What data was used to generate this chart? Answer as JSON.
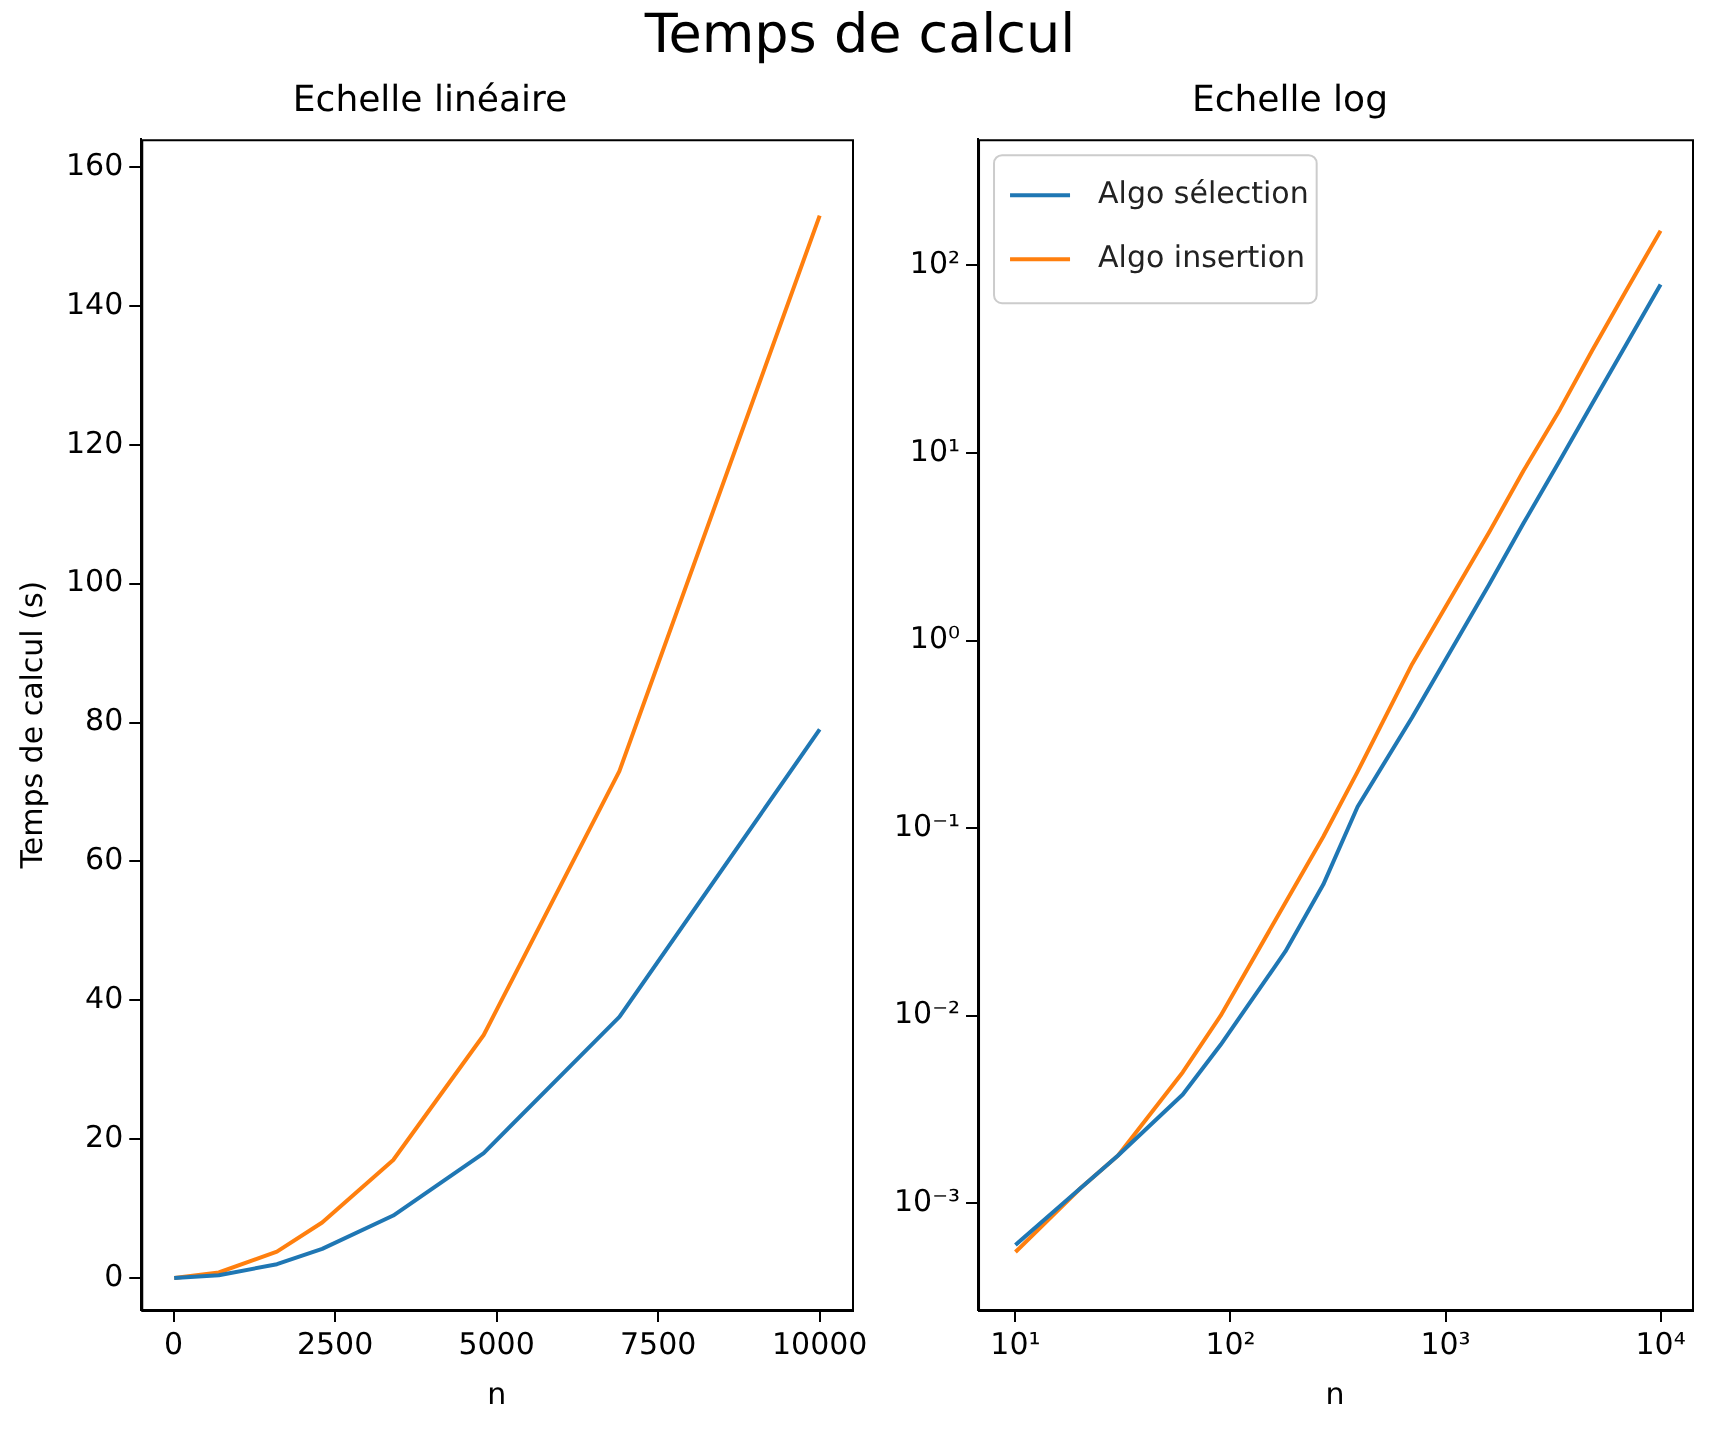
{
  "chart_data": [
    {
      "type": "line",
      "title": "Temps de calcul",
      "subtitle": "Echelle linéaire",
      "xlabel": "n",
      "ylabel": "Temps de calcul (s)",
      "x": [
        10,
        700,
        1600,
        2300,
        3400,
        4800,
        6900,
        10000
      ],
      "series": [
        {
          "color": "#1f77b4",
          "values": [
            0,
            0.4,
            2,
            4.2,
            9,
            18,
            37.6,
            79
          ]
        },
        {
          "color": "#ff7f0e",
          "values": [
            0,
            0.8,
            3.8,
            8,
            17,
            35,
            73,
            153
          ]
        }
      ],
      "xlim": [
        -500,
        10500
      ],
      "xticks": [
        0,
        2500,
        5000,
        7500,
        10000
      ],
      "ylim": [
        -4.6,
        164
      ],
      "yticks": [
        0,
        20,
        40,
        60,
        80,
        100,
        120,
        140,
        160
      ],
      "grid": false,
      "legend": false
    },
    {
      "type": "line",
      "subtitle": "Echelle log",
      "xlabel": "n",
      "x": [
        10,
        20,
        30,
        60,
        90,
        180,
        270,
        390,
        700,
        1600,
        2300,
        3400,
        4800,
        6900,
        10000
      ],
      "series": [
        {
          "name": "Algo sélection",
          "color": "#1f77b4",
          "values": [
            0.0006,
            0.0012,
            0.0018,
            0.0038,
            0.007,
            0.022,
            0.05,
            0.13,
            0.39,
            2.0,
            4.2,
            9.1,
            18.2,
            37.6,
            79
          ]
        },
        {
          "name": "Algo insertion",
          "color": "#ff7f0e",
          "values": [
            0.00055,
            0.0012,
            0.0018,
            0.005,
            0.01,
            0.04,
            0.09,
            0.2,
            0.75,
            3.8,
            8,
            17,
            35,
            73,
            153
          ]
        }
      ],
      "log": "xy",
      "xlim": [
        6.7,
        14000
      ],
      "xticks": [
        {
          "value": 10,
          "label": "10¹"
        },
        {
          "value": 100,
          "label": "10²"
        },
        {
          "value": 1000,
          "label": "10³"
        },
        {
          "value": 10000,
          "label": "10⁴"
        }
      ],
      "ylim": [
        0.00027,
        470
      ],
      "yticks": [
        {
          "value": 0.001,
          "label": "10⁻³"
        },
        {
          "value": 0.01,
          "label": "10⁻²"
        },
        {
          "value": 0.1,
          "label": "10⁻¹"
        },
        {
          "value": 1,
          "label": "10⁰"
        },
        {
          "value": 10,
          "label": "10¹"
        },
        {
          "value": 100,
          "label": "10²"
        }
      ],
      "grid": false,
      "legend": "top left"
    }
  ]
}
